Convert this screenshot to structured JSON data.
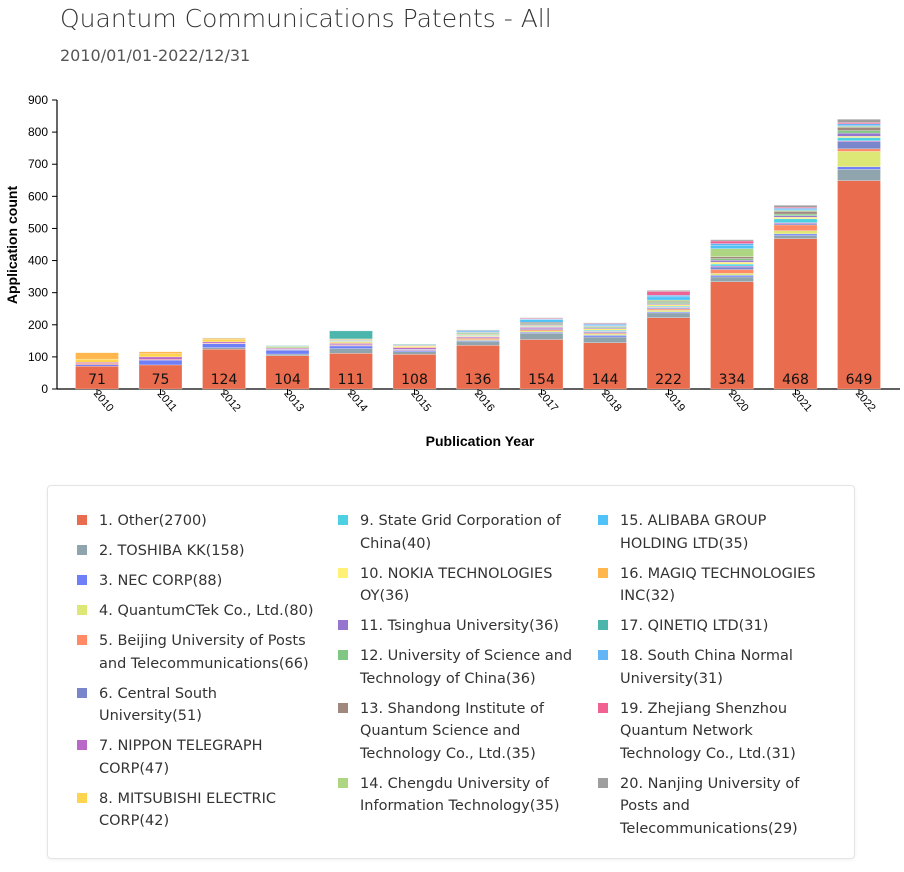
{
  "title": "Quantum Communications Patents - All",
  "subtitle": "2010/01/01-2022/12/31",
  "chart_data": {
    "type": "bar",
    "stacked": true,
    "xlabel": "Publication Year",
    "ylabel": "Application count",
    "ylim": [
      0,
      900
    ],
    "yticks": [
      0,
      100,
      200,
      300,
      400,
      500,
      600,
      700,
      800,
      900
    ],
    "categories": [
      "2010",
      "2011",
      "2012",
      "2013",
      "2014",
      "2015",
      "2016",
      "2017",
      "2018",
      "2019",
      "2020",
      "2021",
      "2022"
    ],
    "legend_placement": "bottom",
    "series": [
      {
        "name": "1. Other(2700)",
        "color": "#e86c4d",
        "values": [
          71,
          75,
          124,
          104,
          111,
          108,
          136,
          154,
          144,
          222,
          334,
          468,
          649
        ]
      },
      {
        "name": "2. TOSHIBA KK(158)",
        "color": "#90a4ae",
        "values": [
          0,
          0,
          5,
          5,
          15,
          8,
          12,
          20,
          18,
          15,
          15,
          10,
          35
        ]
      },
      {
        "name": "3. NEC CORP(88)",
        "color": "#6f7ff8",
        "values": [
          5,
          15,
          12,
          12,
          8,
          4,
          3,
          3,
          5,
          3,
          5,
          5,
          8
        ]
      },
      {
        "name": "4. QuantumCTek Co., Ltd.(80)",
        "color": "#dce775",
        "values": [
          0,
          0,
          0,
          0,
          0,
          0,
          3,
          4,
          4,
          5,
          6,
          10,
          48
        ]
      },
      {
        "name": "5. Beijing University of Posts and Telecommunications(66)",
        "color": "#ff8a65",
        "values": [
          4,
          2,
          2,
          1,
          2,
          2,
          4,
          4,
          3,
          4,
          12,
          18,
          8
        ]
      },
      {
        "name": "6. Central South University(51)",
        "color": "#7986cb",
        "values": [
          0,
          0,
          0,
          2,
          2,
          2,
          2,
          3,
          3,
          3,
          8,
          4,
          22
        ]
      },
      {
        "name": "7. NIPPON TELEGRAPH CORP(47)",
        "color": "#ba68c8",
        "values": [
          3,
          8,
          4,
          3,
          4,
          5,
          3,
          4,
          2,
          2,
          3,
          3,
          3
        ]
      },
      {
        "name": "8. MITSUBISHI ELECTRIC CORP(42)",
        "color": "#ffd54f",
        "values": [
          10,
          10,
          8,
          2,
          4,
          3,
          2,
          1,
          1,
          1,
          0,
          0,
          0
        ]
      },
      {
        "name": "9. State Grid Corporation of China(40)",
        "color": "#4dd0e1",
        "values": [
          0,
          0,
          0,
          0,
          2,
          0,
          2,
          2,
          3,
          3,
          6,
          12,
          10
        ]
      },
      {
        "name": "10. NOKIA TECHNOLOGIES OY(36)",
        "color": "#fff176",
        "values": [
          0,
          0,
          0,
          0,
          2,
          3,
          3,
          3,
          5,
          5,
          6,
          5,
          4
        ]
      },
      {
        "name": "11. Tsinghua University(36)",
        "color": "#9575cd",
        "values": [
          0,
          0,
          0,
          0,
          2,
          2,
          2,
          3,
          3,
          3,
          6,
          5,
          10
        ]
      },
      {
        "name": "12. University of Science and Technology of China(36)",
        "color": "#81c784",
        "values": [
          0,
          0,
          0,
          3,
          2,
          0,
          3,
          3,
          3,
          4,
          5,
          5,
          8
        ]
      },
      {
        "name": "13. Shandong Institute of Quantum Science and Technology Co., Ltd.(35)",
        "color": "#a1887f",
        "values": [
          0,
          0,
          0,
          0,
          0,
          0,
          2,
          4,
          2,
          3,
          6,
          8,
          10
        ]
      },
      {
        "name": "14. Chengdu University of Information Technology(35)",
        "color": "#aed581",
        "values": [
          0,
          0,
          0,
          0,
          0,
          0,
          0,
          0,
          0,
          4,
          25,
          3,
          3
        ]
      },
      {
        "name": "15. ALIBABA GROUP HOLDING LTD(35)",
        "color": "#4fc3f7",
        "values": [
          0,
          0,
          0,
          0,
          0,
          0,
          0,
          8,
          2,
          10,
          10,
          3,
          2
        ]
      },
      {
        "name": "16. MAGIQ TECHNOLOGIES INC(32)",
        "color": "#ffb74d",
        "values": [
          20,
          6,
          3,
          1,
          2,
          0,
          0,
          0,
          0,
          0,
          0,
          0,
          0
        ]
      },
      {
        "name": "17. QINETIQ LTD(31)",
        "color": "#4db6ac",
        "values": [
          0,
          0,
          1,
          2,
          25,
          2,
          1,
          0,
          0,
          0,
          0,
          0,
          0
        ]
      },
      {
        "name": "18. South China Normal University(31)",
        "color": "#64b5f6",
        "values": [
          0,
          0,
          0,
          0,
          0,
          0,
          4,
          2,
          4,
          5,
          6,
          4,
          6
        ]
      },
      {
        "name": "19. Zhejiang Shenzhou Quantum Network Technology Co., Ltd.(31)",
        "color": "#f06292",
        "values": [
          0,
          0,
          0,
          0,
          0,
          0,
          0,
          2,
          2,
          12,
          8,
          3,
          4
        ]
      },
      {
        "name": "20. Nanjing University of Posts and Telecommunications(29)",
        "color": "#9e9e9e",
        "values": [
          0,
          0,
          0,
          0,
          0,
          0,
          2,
          2,
          2,
          3,
          4,
          6,
          10
        ]
      }
    ]
  }
}
